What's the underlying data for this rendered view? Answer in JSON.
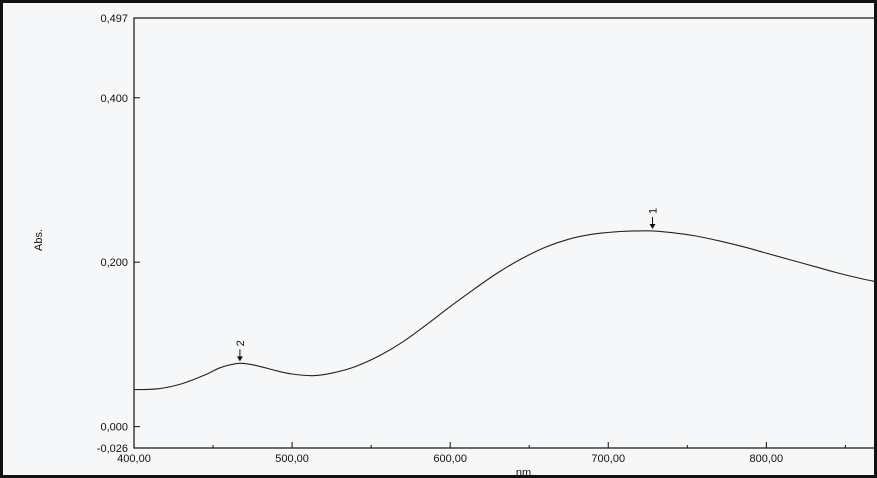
{
  "chart_data": {
    "type": "line",
    "title": "",
    "xlabel": "nm.",
    "ylabel": "Abs.",
    "xlim": [
      400,
      870
    ],
    "ylim": [
      -0.026,
      0.497
    ],
    "x_ticks": [
      {
        "value": 400,
        "label": "400,00"
      },
      {
        "value": 500,
        "label": "500,00"
      },
      {
        "value": 600,
        "label": "600,00"
      },
      {
        "value": 700,
        "label": "700,00"
      },
      {
        "value": 800,
        "label": "800,00"
      }
    ],
    "y_ticks": [
      {
        "value": 0.497,
        "label": "0,497"
      },
      {
        "value": 0.4,
        "label": "0,400"
      },
      {
        "value": 0.2,
        "label": "0,200"
      },
      {
        "value": 0.0,
        "label": "0,000"
      },
      {
        "value": -0.026,
        "label": "-0,026"
      }
    ],
    "series": [
      {
        "x": [
          400,
          415,
          430,
          445,
          455,
          467,
          478,
          490,
          500,
          513,
          525,
          540,
          555,
          570,
          585,
          600,
          615,
          630,
          645,
          660,
          675,
          690,
          705,
          718,
          728,
          740,
          755,
          770,
          785,
          800,
          815,
          830,
          845,
          860,
          870
        ],
        "y": [
          0.045,
          0.046,
          0.052,
          0.063,
          0.072,
          0.077,
          0.074,
          0.068,
          0.064,
          0.062,
          0.065,
          0.073,
          0.086,
          0.103,
          0.124,
          0.146,
          0.167,
          0.187,
          0.204,
          0.218,
          0.228,
          0.234,
          0.237,
          0.238,
          0.238,
          0.236,
          0.232,
          0.226,
          0.219,
          0.211,
          0.203,
          0.195,
          0.187,
          0.18,
          0.176
        ]
      }
    ],
    "annotations": [
      {
        "label": "1",
        "x": 728,
        "y": 0.238
      },
      {
        "label": "2",
        "x": 467,
        "y": 0.077
      }
    ],
    "grid": false
  }
}
